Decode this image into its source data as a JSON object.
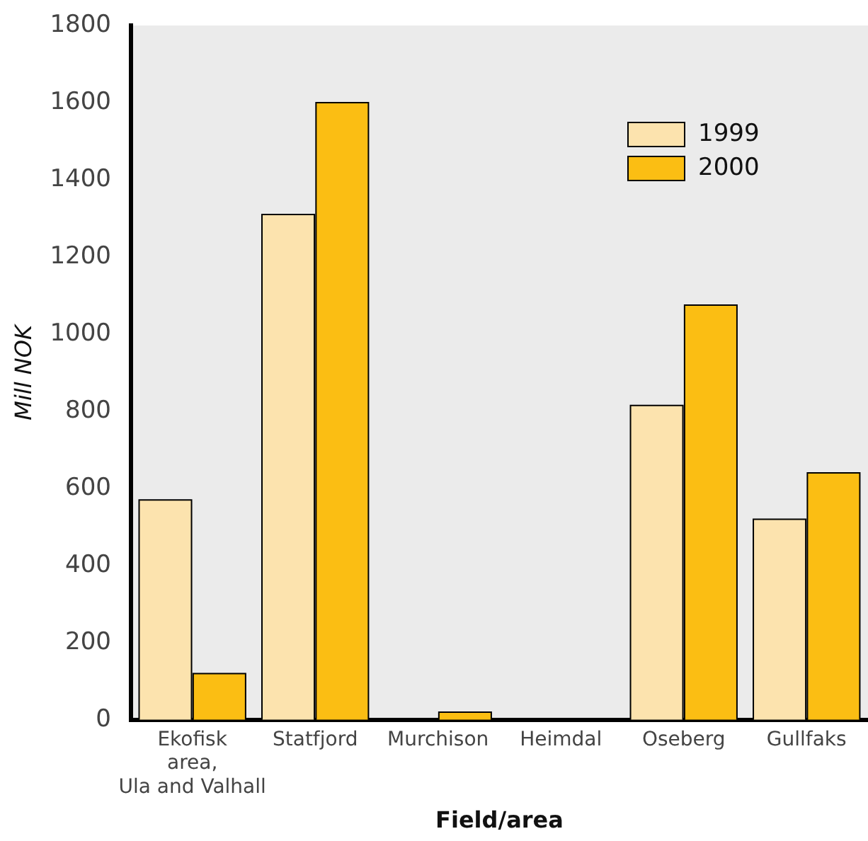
{
  "chart_data": {
    "type": "bar",
    "xlabel": "Field/area",
    "ylabel": "Mill NOK",
    "categories": [
      "Ekofisk\narea,\nUla and Valhall",
      "Statfjord",
      "Murchison",
      "Heimdal",
      "Oseberg",
      "Gullfaks"
    ],
    "series": [
      {
        "name": "1999",
        "color": "#fce3ae",
        "values": [
          570,
          1310,
          0,
          0,
          815,
          520
        ]
      },
      {
        "name": "2000",
        "color": "#fbbe13",
        "values": [
          120,
          1600,
          20,
          0,
          1075,
          640
        ]
      }
    ],
    "ylim": [
      0,
      1800
    ],
    "yticks": [
      0,
      200,
      400,
      600,
      800,
      1000,
      1200,
      1400,
      1600,
      1800
    ],
    "grid": false,
    "legend": "top right"
  }
}
